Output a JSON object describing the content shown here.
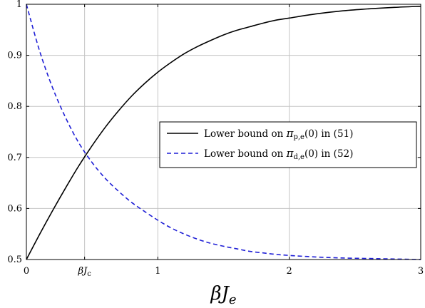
{
  "chart_data": {
    "type": "line",
    "title": "",
    "xlabel_base": "βJ",
    "xlabel_sub": "e",
    "ylabel": "",
    "xlim": [
      0,
      3
    ],
    "ylim": [
      0.5,
      1
    ],
    "grid": true,
    "legend_position": "right",
    "x_ticks": [
      {
        "value": 0,
        "label": "0"
      },
      {
        "value": 0.443,
        "label": "βJ",
        "sub": "c"
      },
      {
        "value": 1,
        "label": "1"
      },
      {
        "value": 2,
        "label": "2"
      },
      {
        "value": 3,
        "label": "3"
      }
    ],
    "y_ticks": [
      {
        "value": 0.5,
        "label": "0.5"
      },
      {
        "value": 0.6,
        "label": "0.6"
      },
      {
        "value": 0.7,
        "label": "0.7"
      },
      {
        "value": 0.8,
        "label": "0.8"
      },
      {
        "value": 0.9,
        "label": "0.9"
      },
      {
        "value": 1,
        "label": "1"
      }
    ],
    "series": [
      {
        "legend_pre": "Lower bound on ",
        "legend_sym": "π",
        "legend_sub": "p,e",
        "legend_post": "(0) in (51)",
        "color": "#000000",
        "dash": "solid",
        "x": [
          0,
          0.1,
          0.2,
          0.3,
          0.4,
          0.5,
          0.6,
          0.7,
          0.8,
          0.9,
          1.0,
          1.1,
          1.2,
          1.3,
          1.4,
          1.5,
          1.6,
          1.7,
          1.8,
          1.9,
          2.0,
          2.2,
          2.4,
          2.6,
          2.8,
          3.0
        ],
        "y": [
          0.5,
          0.549,
          0.596,
          0.641,
          0.684,
          0.723,
          0.759,
          0.791,
          0.82,
          0.845,
          0.867,
          0.886,
          0.903,
          0.917,
          0.929,
          0.94,
          0.949,
          0.956,
          0.963,
          0.969,
          0.973,
          0.981,
          0.987,
          0.991,
          0.994,
          0.996
        ]
      },
      {
        "legend_pre": "Lower bound on ",
        "legend_sym": "π",
        "legend_sub": "d,e",
        "legend_post": "(0) in (52)",
        "color": "#1f1fd6",
        "dash": "dashed",
        "x": [
          0,
          0.1,
          0.2,
          0.3,
          0.4,
          0.5,
          0.6,
          0.7,
          0.8,
          0.9,
          1.0,
          1.1,
          1.2,
          1.3,
          1.4,
          1.5,
          1.6,
          1.7,
          1.8,
          1.9,
          2.0,
          2.2,
          2.4,
          2.6,
          2.8,
          3.0
        ],
        "y": [
          1.0,
          0.909,
          0.836,
          0.777,
          0.728,
          0.69,
          0.659,
          0.634,
          0.612,
          0.594,
          0.577,
          0.562,
          0.55,
          0.54,
          0.532,
          0.526,
          0.521,
          0.516,
          0.513,
          0.51,
          0.508,
          0.505,
          0.503,
          0.502,
          0.501,
          0.5
        ]
      }
    ]
  }
}
